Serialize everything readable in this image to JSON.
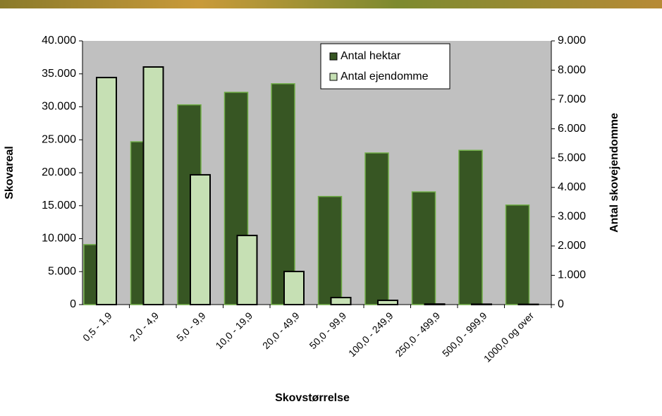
{
  "chart_data": {
    "type": "bar",
    "x_label": "Skovstørrelse",
    "y_label": "Skovareal",
    "y2_label": "Antal skovejendomme",
    "categories": [
      "0,5 - 1,9",
      "2,0 - 4,9",
      "5,0 - 9,9",
      "10,0 - 19,9",
      "20,0 - 49,9",
      "50,0 - 99,9",
      "100,0 - 249,9",
      "250,0 - 499,9",
      "500,0 - 999,9",
      "1000,0 og over"
    ],
    "series": [
      {
        "name": "Antal hektar",
        "color": "#375623",
        "values": [
          9100,
          24700,
          30300,
          32200,
          33500,
          16400,
          23000,
          17100,
          23400,
          15100
        ]
      },
      {
        "name": "Antal ejendomme",
        "color": "#c6e0b4",
        "axis": "y2",
        "values": [
          7750,
          8110,
          4430,
          2360,
          1130,
          240,
          145,
          20,
          15,
          10
        ]
      }
    ],
    "ylim": [
      0,
      40000
    ],
    "yticks": [
      0,
      {
        "value": 5000,
        "label": "5.000"
      },
      {
        "value": 10000,
        "label": "10.000"
      },
      {
        "value": 15000,
        "label": "15.000"
      },
      {
        "value": 20000,
        "label": "20.000"
      },
      {
        "value": 25000,
        "label": "25.000"
      },
      {
        "value": 30000,
        "label": "30.000"
      },
      {
        "value": 35000,
        "label": "35.000"
      },
      {
        "value": 40000,
        "label": "40.000"
      }
    ],
    "y2lim": [
      0,
      9000
    ],
    "y2ticks": [
      0,
      {
        "value": 1000,
        "label": "1.000"
      },
      {
        "value": 2000,
        "label": "2.000"
      },
      {
        "value": 3000,
        "label": "3.000"
      },
      {
        "value": 4000,
        "label": "4.000"
      },
      {
        "value": 5000,
        "label": "5.000"
      },
      {
        "value": 6000,
        "label": "6.000"
      },
      {
        "value": 7000,
        "label": "7.000"
      },
      {
        "value": 8000,
        "label": "8.000"
      },
      {
        "value": 9000,
        "label": "9.000"
      }
    ],
    "legend": "top-right"
  }
}
